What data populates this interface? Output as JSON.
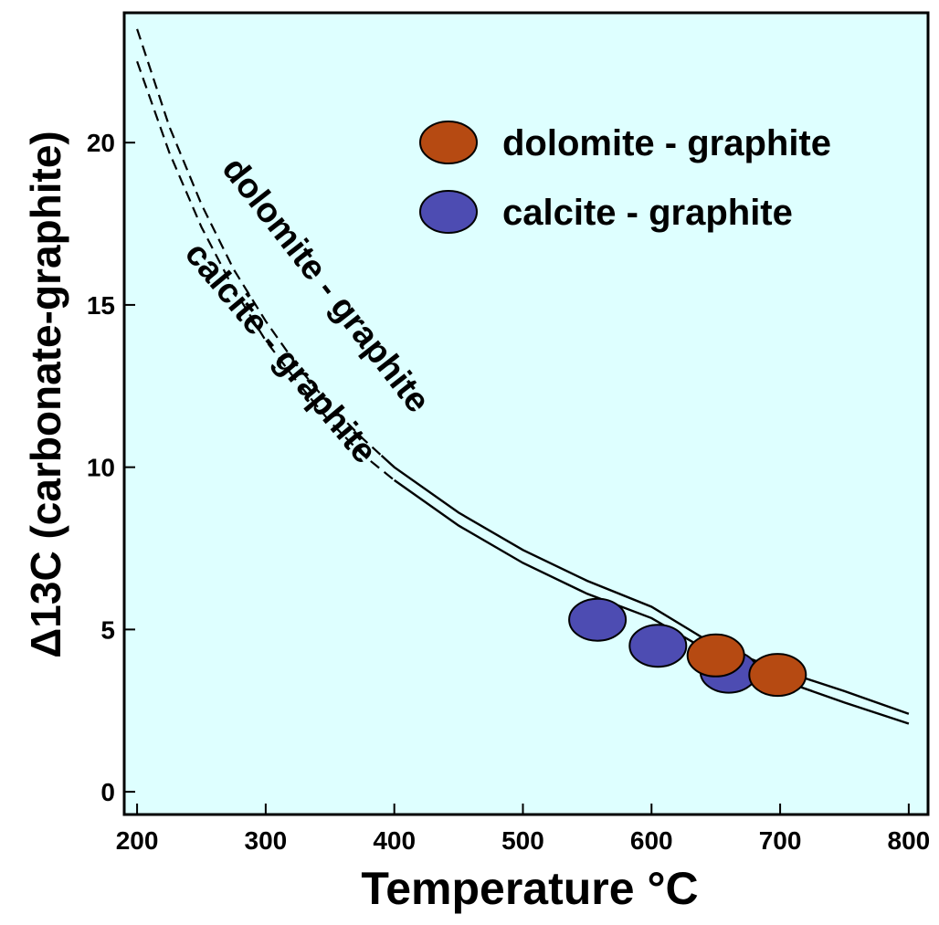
{
  "colors": {
    "plot_background": "#DEFFFF",
    "dolomite": "#B64A12",
    "calcite": "#4D4CB2",
    "line": "#000000"
  },
  "chart_data": {
    "type": "scatter",
    "title": "",
    "xlabel": "Temperature °C",
    "ylabel": "Δ13C (carbonate-graphite)",
    "xlim": [
      190,
      815
    ],
    "ylim": [
      -0.7,
      24
    ],
    "xticks": [
      200,
      300,
      400,
      500,
      600,
      700,
      800
    ],
    "yticks": [
      0,
      5,
      10,
      15,
      20
    ],
    "grid": false,
    "legend_position": "top-right",
    "series": [
      {
        "name": "dolomite - graphite",
        "marker": "filled-ellipse",
        "x": [
          650,
          698
        ],
        "y": [
          4.2,
          3.6
        ]
      },
      {
        "name": "calcite - graphite",
        "marker": "filled-ellipse",
        "x": [
          558,
          605,
          660
        ],
        "y": [
          5.3,
          4.5,
          3.7
        ]
      }
    ],
    "curves": [
      {
        "name": "dolomite - graphite",
        "x_solid_start": 390,
        "x": [
          200,
          225,
          250,
          275,
          300,
          325,
          350,
          375,
          400,
          450,
          500,
          550,
          600,
          650,
          700,
          750,
          800
        ],
        "y": [
          23.5,
          20.5,
          18.1,
          16.1,
          14.5,
          13.1,
          11.9,
          10.9,
          10.0,
          8.6,
          7.45,
          6.5,
          5.7,
          4.5,
          3.75,
          3.1,
          2.4
        ]
      },
      {
        "name": "calcite - graphite",
        "x_solid_start": 400,
        "x": [
          200,
          225,
          250,
          275,
          300,
          325,
          350,
          375,
          400,
          450,
          500,
          550,
          600,
          650,
          700,
          750,
          800
        ],
        "y": [
          22.5,
          19.7,
          17.4,
          15.5,
          13.9,
          12.6,
          11.4,
          10.4,
          9.6,
          8.2,
          7.05,
          6.1,
          5.35,
          4.2,
          3.45,
          2.75,
          2.1
        ]
      }
    ],
    "legend": [
      {
        "label": "dolomite - graphite",
        "series": "dolomite"
      },
      {
        "label": "calcite - graphite",
        "series": "calcite"
      }
    ],
    "annotations": [
      {
        "text": "dolomite - graphite",
        "x": 340,
        "y": 15.4,
        "rotation": 52
      },
      {
        "text": "calcite - graphite",
        "x": 305,
        "y": 13.3,
        "rotation": 50
      }
    ]
  }
}
